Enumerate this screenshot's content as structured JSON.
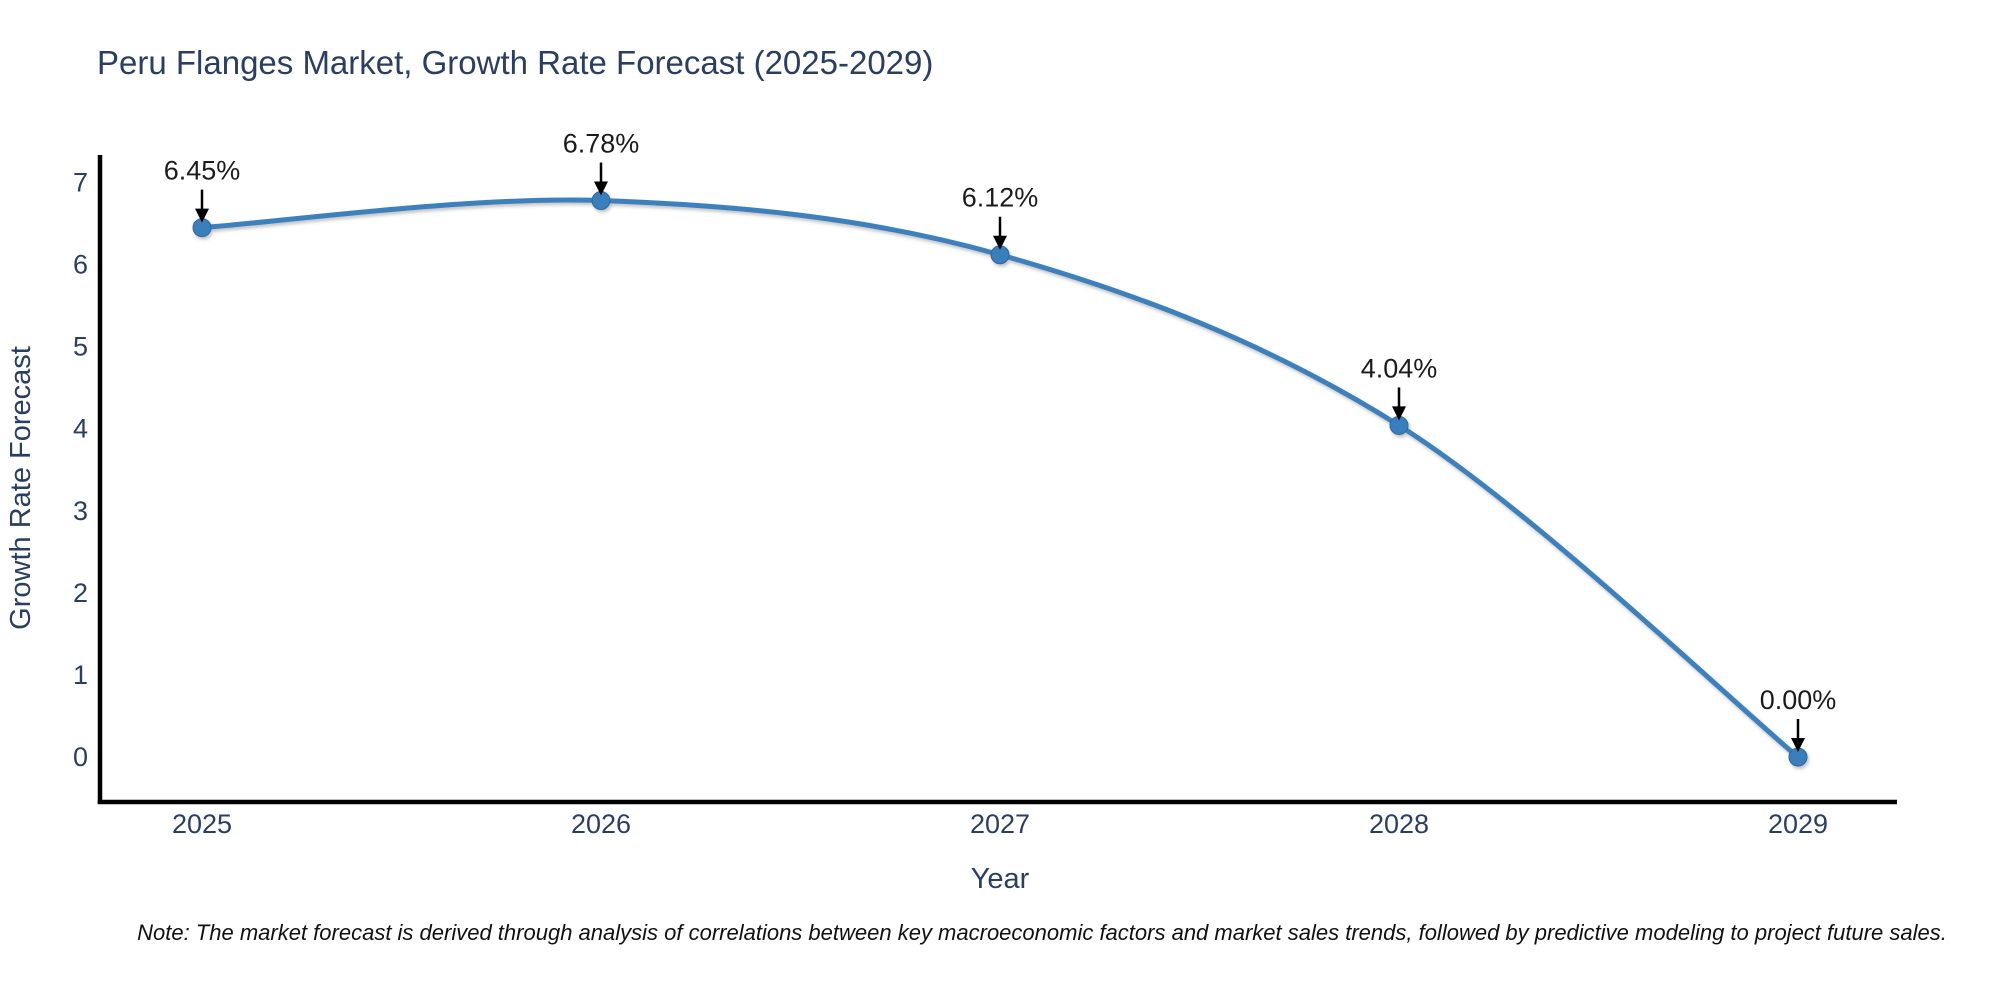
{
  "title": "Peru Flanges Market, Growth Rate Forecast (2025-2029)",
  "note": "Note: The market forecast is derived through analysis of correlations between key macroeconomic factors and market sales trends, followed by predictive modeling to project future sales.",
  "colors": {
    "background": "#ffffff",
    "line": "#3e80bc",
    "marker_fill": "#3a7ebc",
    "marker_edge": "#2e679c",
    "axis": "#000000",
    "title_text": "#2a3f5f",
    "tick_text": "#2a3f5f",
    "annotation_text": "#1b1b1b",
    "arrow": "#000000",
    "note_text": "#111111"
  },
  "chart_data": {
    "type": "line",
    "title": "Peru Flanges Market, Growth Rate Forecast (2025-2029)",
    "xlabel": "Year",
    "ylabel": "Growth Rate Forecast",
    "x": [
      2025,
      2026,
      2027,
      2028,
      2029
    ],
    "categories": [
      "2025",
      "2026",
      "2027",
      "2028",
      "2029"
    ],
    "values": [
      6.45,
      6.78,
      6.12,
      4.04,
      0.0
    ],
    "point_labels": [
      "6.45%",
      "6.78%",
      "6.12%",
      "4.04%",
      "0.00%"
    ],
    "yticks": [
      0,
      1,
      2,
      3,
      4,
      5,
      6,
      7
    ],
    "ylim": [
      -0.55,
      7.35
    ],
    "xlim": [
      2024.74,
      2029.25
    ],
    "grid": false,
    "legend": "none",
    "smooth": true,
    "marker": "circle",
    "annotation_style": "value label above point with black arrow pointing to marker"
  }
}
